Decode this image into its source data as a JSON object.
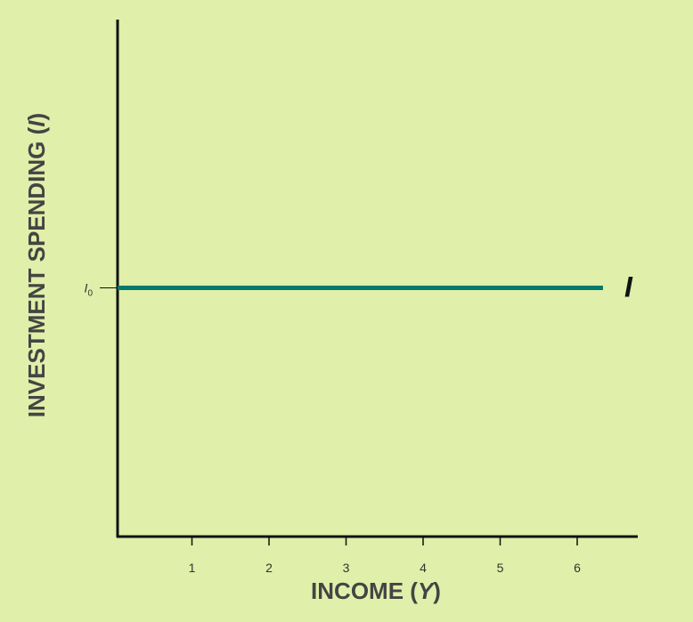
{
  "chart_data": {
    "type": "line",
    "title": "",
    "xlabel": "INCOME (Y)",
    "xlabel_parts": {
      "text": "INCOME (",
      "var": "Y",
      "close": ")"
    },
    "ylabel": "INVESTMENT SPENDING (I)",
    "ylabel_parts": {
      "text": "INVESTMENT SPENDING (",
      "var": "I",
      "close": ")"
    },
    "x_ticks": [
      "1",
      "2",
      "3",
      "4",
      "5",
      "6"
    ],
    "y_tick": {
      "base": "I",
      "sub": "0",
      "value": 1
    },
    "xlim": [
      0,
      6.9
    ],
    "ylim": [
      0,
      2
    ],
    "grid": false,
    "series": [
      {
        "name": "I",
        "color": "#007a6b",
        "x": [
          0,
          6.3
        ],
        "y": [
          1,
          1
        ]
      }
    ]
  },
  "colors": {
    "background": "#e0efa9",
    "axis": "#111111",
    "line": "#007a6b"
  }
}
